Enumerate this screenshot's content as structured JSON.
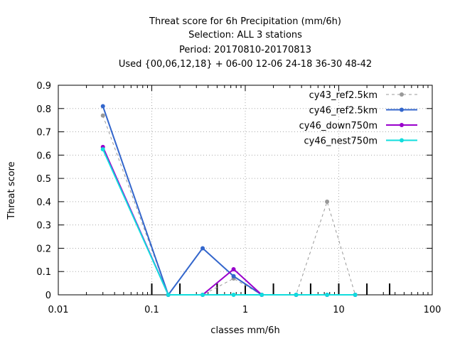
{
  "chart_data": {
    "type": "line",
    "title_lines": [
      "Threat score  for 6h Precipitation (mm/6h)",
      "Selection: ALL      3 stations",
      "Period: 20170810-20170813",
      "Used {00,06,12,18} + 06-00 12-06 24-18 36-30 48-42"
    ],
    "xlabel": "classes mm/6h",
    "ylabel": "Threat score",
    "xscale": "log",
    "xlim": [
      0.01,
      100
    ],
    "ylim": [
      0,
      0.9
    ],
    "xticks": [
      0.01,
      0.1,
      1,
      10,
      100
    ],
    "xtick_labels": [
      "0.01",
      "0.1",
      "1",
      "10",
      "100"
    ],
    "yticks": [
      0,
      0.1,
      0.2,
      0.3,
      0.4,
      0.5,
      0.6,
      0.7,
      0.8,
      0.9
    ],
    "ytick_labels": [
      "0",
      "0.1",
      "0.2",
      "0.3",
      "0.4",
      "0.5",
      "0.6",
      "0.7",
      "0.8",
      "0.9"
    ],
    "grid": true,
    "legend_position": "top-right",
    "class_thresholds": [
      0.1,
      0.2,
      0.5,
      1,
      2,
      5,
      10,
      20,
      35
    ],
    "x": [
      0.03,
      0.15,
      0.35,
      0.75,
      1.5,
      3.5,
      7.5,
      15
    ],
    "series": [
      {
        "name": "cy43_ref2.5km",
        "color": "#999999",
        "dashed": true,
        "values": [
          0.77,
          0.0,
          0.0,
          0.07,
          0.0,
          0.0,
          0.4,
          0.0
        ]
      },
      {
        "name": "cy46_ref2.5km",
        "color": "#3366cc",
        "dashed": false,
        "values": [
          0.81,
          0.0,
          0.2,
          0.08,
          0.0,
          0.0,
          0.0,
          0.0
        ]
      },
      {
        "name": "cy46_down750m",
        "color": "#9900cc",
        "dashed": false,
        "values": [
          0.635,
          0.0,
          0.0,
          0.11,
          0.0,
          0.0,
          0.0,
          0.0
        ]
      },
      {
        "name": "cy46_nest750m",
        "color": "#11dddd",
        "dashed": false,
        "values": [
          0.625,
          0.0,
          0.0,
          0.0,
          0.0,
          0.0,
          0.0,
          0.0
        ]
      }
    ]
  }
}
